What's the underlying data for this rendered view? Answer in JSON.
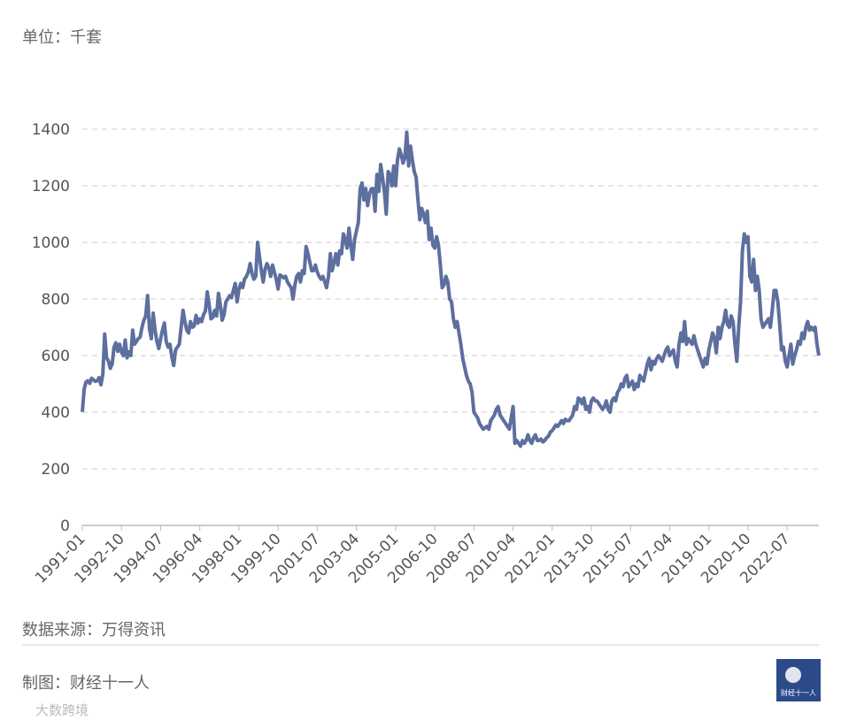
{
  "unit_label": "单位：千套",
  "source": "数据来源：万得资讯",
  "credit": "制图：财经十一人",
  "logo_text": "财经十一人",
  "watermark": "大数跨境",
  "chart_data": {
    "type": "line",
    "color": "#5d6f9e",
    "ylim": [
      0,
      1400
    ],
    "yticks": [
      0,
      200,
      400,
      600,
      800,
      1000,
      1200,
      1400
    ],
    "grid": true,
    "categories": [
      "1991-01",
      null,
      null,
      null,
      null,
      null,
      null,
      null,
      null,
      null,
      null,
      null,
      null,
      null,
      null,
      null,
      null,
      null,
      null,
      null,
      null,
      "1992-10",
      null,
      null,
      null,
      null,
      null,
      null,
      null,
      null,
      null,
      null,
      null,
      null,
      null,
      null,
      null,
      null,
      null,
      null,
      null,
      null,
      "1994-07",
      null,
      null,
      null,
      null,
      null,
      null,
      null,
      null,
      null,
      null,
      null,
      null,
      null,
      null,
      null,
      null,
      null,
      null,
      null,
      null,
      "1996-04",
      null,
      null,
      null,
      null,
      null,
      null,
      null,
      null,
      null,
      null,
      null,
      null,
      null,
      null,
      null,
      null,
      null,
      null,
      null,
      null,
      "1998-01",
      null,
      null,
      null,
      null,
      null,
      null,
      null,
      null,
      null,
      null,
      null,
      null,
      null,
      null,
      null,
      null,
      null,
      null,
      null,
      null,
      "1999-10",
      null,
      null,
      null,
      null,
      null,
      null,
      null,
      null,
      null,
      null,
      null,
      null,
      null,
      null,
      null,
      null,
      null,
      null,
      null,
      null,
      "2001-07",
      null,
      null,
      null,
      null,
      null,
      null,
      null,
      null,
      null,
      null,
      null,
      null,
      null,
      null,
      null,
      null,
      null,
      null,
      null,
      null,
      "2003-04",
      null,
      null,
      null,
      null,
      null,
      null,
      null,
      null,
      null,
      null,
      null,
      null,
      null,
      null,
      null,
      null,
      null,
      null,
      null,
      null,
      "2005-01",
      null,
      null,
      null,
      null,
      null,
      null,
      null,
      null,
      null,
      null,
      null,
      null,
      null,
      null,
      null,
      null,
      null,
      null,
      null,
      null,
      "2006-10",
      null,
      null,
      null,
      null,
      null,
      null,
      null,
      null,
      null,
      null,
      null,
      null,
      null,
      null,
      null,
      null,
      null,
      null,
      null,
      null,
      "2008-07",
      null,
      null,
      null,
      null,
      null,
      null,
      null,
      null,
      null,
      null,
      null,
      null,
      null,
      null,
      null,
      null,
      null,
      null,
      null,
      null,
      "2010-04",
      null,
      null,
      null,
      null,
      null,
      null,
      null,
      null,
      null,
      null,
      null,
      null,
      null,
      null,
      null,
      null,
      null,
      null,
      null,
      null,
      "2012-01",
      null,
      null,
      null,
      null,
      null,
      null,
      null,
      null,
      null,
      null,
      null,
      null,
      null,
      null,
      null,
      null,
      null,
      null,
      null,
      null,
      "2013-10",
      null,
      null,
      null,
      null,
      null,
      null,
      null,
      null,
      null,
      null,
      null,
      null,
      null,
      null,
      null,
      null,
      null,
      null,
      null,
      null,
      "2015-07",
      null,
      null,
      null,
      null,
      null,
      null,
      null,
      null,
      null,
      null,
      null,
      null,
      null,
      null,
      null,
      null,
      null,
      null,
      null,
      null,
      "2017-04",
      null,
      null,
      null,
      null,
      null,
      null,
      null,
      null,
      null,
      null,
      null,
      null,
      null,
      null,
      null,
      null,
      null,
      null,
      null,
      null,
      "2019-01",
      null,
      null,
      null,
      null,
      null,
      null,
      null,
      null,
      null,
      null,
      null,
      null,
      null,
      null,
      null,
      null,
      null,
      null,
      null,
      null,
      "2020-10",
      null,
      null,
      null,
      null,
      null,
      null,
      null,
      null,
      null,
      null,
      null,
      null,
      null,
      null,
      null,
      null,
      null,
      null,
      null,
      null,
      "2022-07",
      null,
      null,
      null,
      null,
      null,
      null,
      null,
      null,
      null,
      null,
      null,
      null,
      null,
      null,
      null,
      null,
      null
    ],
    "values": [
      401,
      482,
      507,
      511,
      502,
      520,
      514,
      509,
      511,
      522,
      497,
      535,
      676,
      592,
      581,
      555,
      570,
      630,
      645,
      615,
      640,
      612,
      600,
      655,
      592,
      613,
      600,
      690,
      640,
      650,
      660,
      665,
      700,
      725,
      740,
      812,
      695,
      660,
      750,
      690,
      650,
      625,
      660,
      690,
      715,
      650,
      630,
      640,
      595,
      565,
      620,
      630,
      640,
      700,
      760,
      720,
      690,
      680,
      720,
      700,
      705,
      742,
      715,
      730,
      720,
      745,
      757,
      825,
      780,
      730,
      735,
      760,
      740,
      820,
      780,
      725,
      745,
      790,
      800,
      812,
      805,
      830,
      855,
      790,
      835,
      855,
      840,
      870,
      880,
      895,
      925,
      890,
      870,
      880,
      1000,
      950,
      900,
      860,
      905,
      925,
      910,
      880,
      920,
      895,
      870,
      835,
      885,
      880,
      875,
      880,
      860,
      850,
      840,
      800,
      850,
      880,
      890,
      860,
      900,
      890,
      985,
      960,
      930,
      900,
      900,
      920,
      895,
      880,
      870,
      880,
      860,
      840,
      880,
      960,
      900,
      930,
      960,
      920,
      970,
      960,
      1030,
      1010,
      980,
      1050,
      990,
      940,
      1010,
      1040,
      1070,
      1190,
      1210,
      1150,
      1190,
      1130,
      1170,
      1190,
      1190,
      1110,
      1240,
      1180,
      1275,
      1230,
      1180,
      1100,
      1250,
      1240,
      1200,
      1270,
      1200,
      1290,
      1330,
      1310,
      1280,
      1300,
      1389,
      1270,
      1340,
      1290,
      1250,
      1230,
      1150,
      1080,
      1120,
      1100,
      1070,
      1110,
      1010,
      1050,
      990,
      980,
      1020,
      990,
      920,
      840,
      850,
      880,
      860,
      800,
      790,
      730,
      700,
      720,
      680,
      640,
      590,
      560,
      530,
      510,
      500,
      470,
      400,
      390,
      380,
      360,
      350,
      340,
      345,
      350,
      340,
      370,
      380,
      390,
      410,
      420,
      390,
      380,
      370,
      360,
      350,
      340,
      380,
      420,
      290,
      300,
      290,
      280,
      300,
      290,
      300,
      320,
      300,
      290,
      310,
      320,
      300,
      300,
      305,
      295,
      300,
      310,
      315,
      330,
      335,
      345,
      355,
      350,
      360,
      370,
      360,
      375,
      370,
      370,
      380,
      390,
      420,
      410,
      450,
      445,
      430,
      450,
      410,
      420,
      400,
      440,
      450,
      440,
      440,
      430,
      420,
      410,
      420,
      440,
      410,
      400,
      440,
      450,
      440,
      470,
      480,
      500,
      490,
      520,
      530,
      490,
      500,
      510,
      480,
      500,
      490,
      530,
      520,
      510,
      540,
      570,
      590,
      550,
      580,
      570,
      590,
      600,
      590,
      580,
      600,
      620,
      630,
      600,
      610,
      620,
      580,
      560,
      640,
      680,
      650,
      720,
      640,
      660,
      650,
      640,
      670,
      640,
      620,
      600,
      580,
      560,
      590,
      570,
      620,
      650,
      680,
      660,
      610,
      700,
      660,
      700,
      720,
      760,
      710,
      700,
      740,
      720,
      640,
      580,
      700,
      790,
      970,
      1030,
      1000,
      1020,
      880,
      860,
      940,
      830,
      880,
      830,
      730,
      700,
      710,
      720,
      730,
      700,
      760,
      830,
      830,
      790,
      710,
      620,
      630,
      580,
      560,
      600,
      640,
      570,
      600,
      620,
      650,
      640,
      680,
      660,
      700,
      720,
      690,
      700,
      690,
      700,
      640,
      600
    ]
  }
}
